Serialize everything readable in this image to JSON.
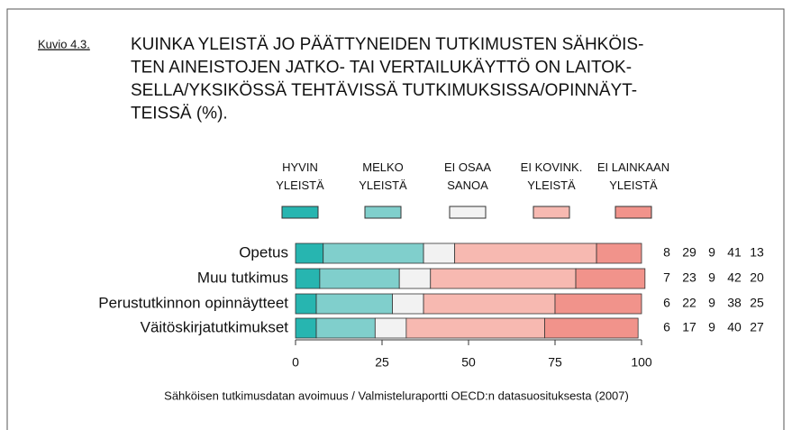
{
  "chart_data": {
    "type": "stacked_barh",
    "figure_label": "Kuvio 4.3.",
    "title": [
      "KUINKA YLEISTÄ JO PÄÄTTYNEIDEN TUTKIMUSTEN SÄHKÖIS-",
      "TEN AINEISTOJEN JATKO- TAI VERTAILUKÄYTTÖ ON LAITOK-",
      "SELLA/YKSIKÖSSÄ TEHTÄVISSÄ TUTKIMUKSISSA/OPINNÄYT-",
      "TEISSÄ (%)."
    ],
    "categories": [
      "Opetus",
      "Muu tutkimus",
      "Perustutkinnon opinnäytteet",
      "Väitöskirjatutkimukset"
    ],
    "series": [
      {
        "name": "HYVIN YLEISTÄ",
        "color": "#27b5b0",
        "values": [
          8,
          7,
          6,
          6
        ]
      },
      {
        "name": "MELKO YLEISTÄ",
        "color": "#80cfcc",
        "values": [
          29,
          23,
          22,
          17
        ]
      },
      {
        "name": "EI OSAA SANOA",
        "color": "#f2f2f2",
        "values": [
          9,
          9,
          9,
          9
        ]
      },
      {
        "name": "EI KOVINK. YLEISTÄ",
        "color": "#f7b9b1",
        "values": [
          41,
          42,
          38,
          40
        ]
      },
      {
        "name": "EI LAINKAAN YLEISTÄ",
        "color": "#f1938b",
        "values": [
          13,
          20,
          25,
          27
        ]
      }
    ],
    "xlim": [
      0,
      100
    ],
    "xticks": [
      0,
      25,
      50,
      75,
      100
    ],
    "source": "Sähköisen tutkimusdatan avoimuus / Valmisteluraportti OECD:n datasuosituksesta (2007)"
  }
}
